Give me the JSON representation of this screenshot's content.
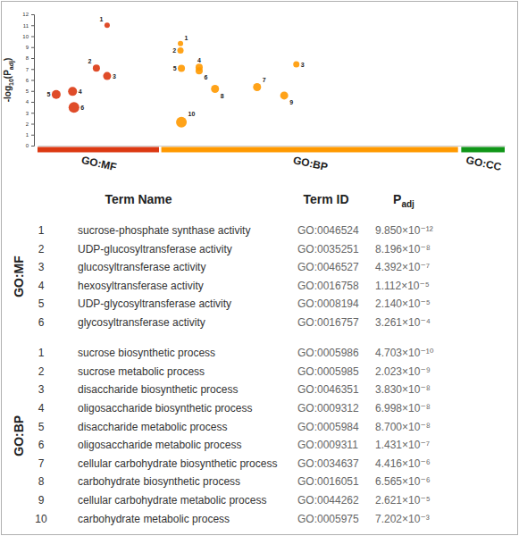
{
  "chart_data": {
    "type": "scatter",
    "ylabel": [
      "-log",
      "10",
      "(P",
      "adj",
      ")"
    ],
    "xlim": [
      0,
      100
    ],
    "ylim": [
      0,
      12
    ],
    "yticks": [
      0,
      1,
      2,
      3,
      4,
      5,
      6,
      7,
      8,
      9,
      10,
      11,
      12
    ],
    "tick_labels": "y",
    "series": [
      {
        "name": "GO:MF",
        "color": "#dc3912",
        "range": [
          0,
          26
        ],
        "x": [
          14.9,
          12.6,
          14.9,
          7.5,
          4.0,
          7.8
        ],
        "values": [
          11.01,
          7.09,
          6.36,
          4.95,
          4.67,
          3.49
        ],
        "size": [
          3,
          4,
          4.5,
          5,
          5,
          6
        ],
        "point_labels": [
          1,
          2,
          3,
          4,
          5,
          6
        ]
      },
      {
        "name": "GO:BP",
        "color": "#ff9900",
        "range": [
          26.5,
          90
        ],
        "x": [
          30.6,
          30.6,
          55.4,
          34.6,
          30.8,
          34.6,
          47.0,
          38.0,
          52.8,
          30.8
        ],
        "values": [
          9.33,
          8.69,
          7.42,
          7.16,
          7.06,
          6.84,
          5.35,
          5.18,
          4.58,
          2.14
        ],
        "size": [
          3,
          3.5,
          3.5,
          4,
          4,
          4,
          4.5,
          4.5,
          4.5,
          6
        ],
        "point_labels": [
          1,
          2,
          3,
          4,
          5,
          6,
          7,
          8,
          9,
          10
        ]
      },
      {
        "name": "GO:CC",
        "color": "#109618",
        "range": [
          90.7,
          100
        ],
        "x": [],
        "values": [],
        "size": [],
        "point_labels": []
      }
    ]
  },
  "table": {
    "header": [
      "Term Name",
      "Term ID",
      [
        "P",
        "adj"
      ]
    ],
    "groups": [
      {
        "name": "GO:MF",
        "rows": [
          [
            1,
            "sucrose-phosphate synthase activity",
            "GO:0046524",
            "9.850×10⁻¹²"
          ],
          [
            2,
            "UDP-glucosyltransferase activity",
            "GO:0035251",
            "8.196×10⁻⁸"
          ],
          [
            3,
            "glucosyltransferase activity",
            "GO:0046527",
            "4.392×10⁻⁷"
          ],
          [
            4,
            "hexosyltransferase activity",
            "GO:0016758",
            "1.112×10⁻⁵"
          ],
          [
            5,
            "UDP-glycosyltransferase activity",
            "GO:0008194",
            "2.140×10⁻⁵"
          ],
          [
            6,
            "glycosyltransferase activity",
            "GO:0016757",
            "3.261×10⁻⁴"
          ]
        ]
      },
      {
        "name": "GO:BP",
        "rows": [
          [
            1,
            "sucrose biosynthetic process",
            "GO:0005986",
            "4.703×10⁻¹⁰"
          ],
          [
            2,
            "sucrose metabolic process",
            "GO:0005985",
            "2.023×10⁻⁹"
          ],
          [
            3,
            "disaccharide biosynthetic process",
            "GO:0046351",
            "3.830×10⁻⁸"
          ],
          [
            4,
            "oligosaccharide biosynthetic process",
            "GO:0009312",
            "6.998×10⁻⁸"
          ],
          [
            5,
            "disaccharide metabolic process",
            "GO:0005984",
            "8.700×10⁻⁸"
          ],
          [
            6,
            "oligosaccharide metabolic process",
            "GO:0009311",
            "1.431×10⁻⁷"
          ],
          [
            7,
            "cellular carbohydrate biosynthetic process",
            "GO:0034637",
            "4.416×10⁻⁶"
          ],
          [
            8,
            "carbohydrate biosynthetic process",
            "GO:0016051",
            "6.565×10⁻⁶"
          ],
          [
            9,
            "cellular carbohydrate metabolic process",
            "GO:0044262",
            "2.621×10⁻⁵"
          ],
          [
            10,
            "carbohydrate metabolic process",
            "GO:0005975",
            "7.202×10⁻³"
          ]
        ]
      }
    ]
  }
}
